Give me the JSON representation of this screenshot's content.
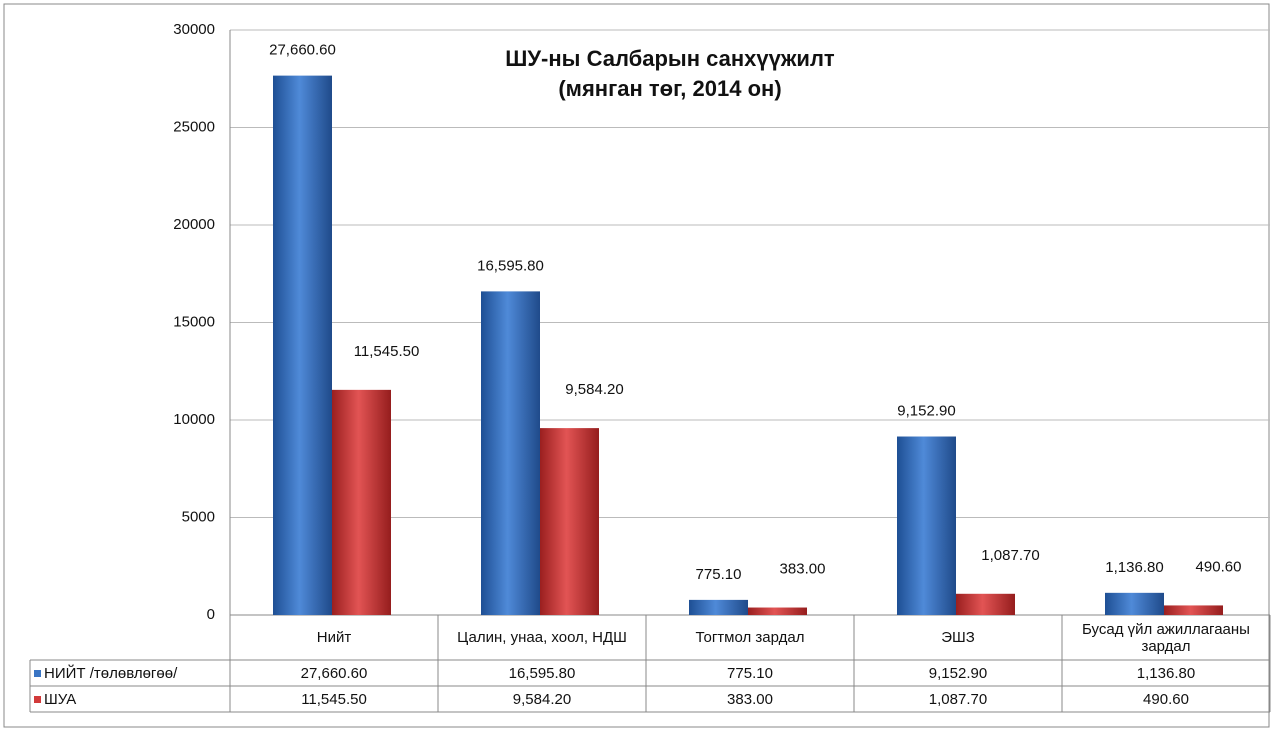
{
  "chart_data": {
    "type": "bar",
    "title": [
      "ШУ-ны Салбарын санхүүжилт",
      "(мянган төг, 2014 он)"
    ],
    "categories": [
      "Нийт",
      "Цалин, унаа, хоол, НДШ",
      "Тогтмол зардал",
      "ЭШЗ",
      "Бусад үйл ажиллагааны зардал"
    ],
    "series": [
      {
        "name": "НИЙТ /төлөвлөгөө/",
        "color": "#3a75c4",
        "values": [
          27660.6,
          16595.8,
          775.1,
          9152.9,
          1136.8
        ],
        "value_labels": [
          "27,660.60",
          "16,595.80",
          "775.10",
          "9,152.90",
          "1,136.80"
        ]
      },
      {
        "name": "ШУА",
        "color": "#d23a3a",
        "values": [
          11545.5,
          9584.2,
          383,
          1087.7,
          490.6
        ],
        "value_labels": [
          "11,545.50",
          "9,584.20",
          "383.00",
          "1,087.70",
          "490.60"
        ]
      }
    ],
    "ylim": [
      0,
      30000
    ],
    "yticks": [
      0,
      5000,
      10000,
      15000,
      20000,
      25000,
      30000
    ],
    "grid": true
  }
}
